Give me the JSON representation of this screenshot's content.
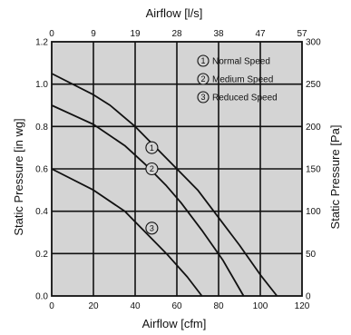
{
  "chart_data": {
    "type": "line",
    "xlabel_bottom": "Airflow [cfm]",
    "xlabel_top": "Airflow [l/s]",
    "ylabel_left": "Static Pressure [in wg]",
    "ylabel_right": "Static Pressure [Pa]",
    "xlim": [
      0,
      120
    ],
    "ylim": [
      0,
      1.2
    ],
    "x_ticks_bottom": [
      "0",
      "20",
      "40",
      "60",
      "80",
      "100",
      "120"
    ],
    "x_ticks_top": [
      "0",
      "9",
      "19",
      "28",
      "38",
      "47",
      "57"
    ],
    "y_ticks_left": [
      "0.0",
      "0.2",
      "0.4",
      "0.6",
      "0.8",
      "1.0",
      "1.2"
    ],
    "y_ticks_right": [
      "0",
      "50",
      "100",
      "150",
      "200",
      "250",
      "300"
    ],
    "grid": true,
    "background": "#d4d4d4",
    "legend_position": "top-right",
    "series": [
      {
        "name": "Normal Speed",
        "marker": "1",
        "marker_at": [
          48,
          0.7
        ],
        "x": [
          0,
          20,
          28,
          40,
          60,
          70,
          80,
          90,
          100,
          108
        ],
        "y": [
          1.05,
          0.95,
          0.9,
          0.8,
          0.6,
          0.5,
          0.37,
          0.24,
          0.1,
          0.0
        ]
      },
      {
        "name": "Medium Speed",
        "marker": "2",
        "marker_at": [
          48,
          0.6
        ],
        "x": [
          0,
          20,
          35,
          45,
          55,
          62,
          72,
          82,
          92
        ],
        "y": [
          0.9,
          0.81,
          0.71,
          0.62,
          0.52,
          0.44,
          0.31,
          0.17,
          0.0
        ]
      },
      {
        "name": "Reduced Speed",
        "marker": "3",
        "marker_at": [
          48,
          0.32
        ],
        "x": [
          0,
          20,
          35,
          45,
          55,
          65,
          72
        ],
        "y": [
          0.6,
          0.5,
          0.4,
          0.3,
          0.2,
          0.09,
          0.0
        ]
      }
    ]
  }
}
